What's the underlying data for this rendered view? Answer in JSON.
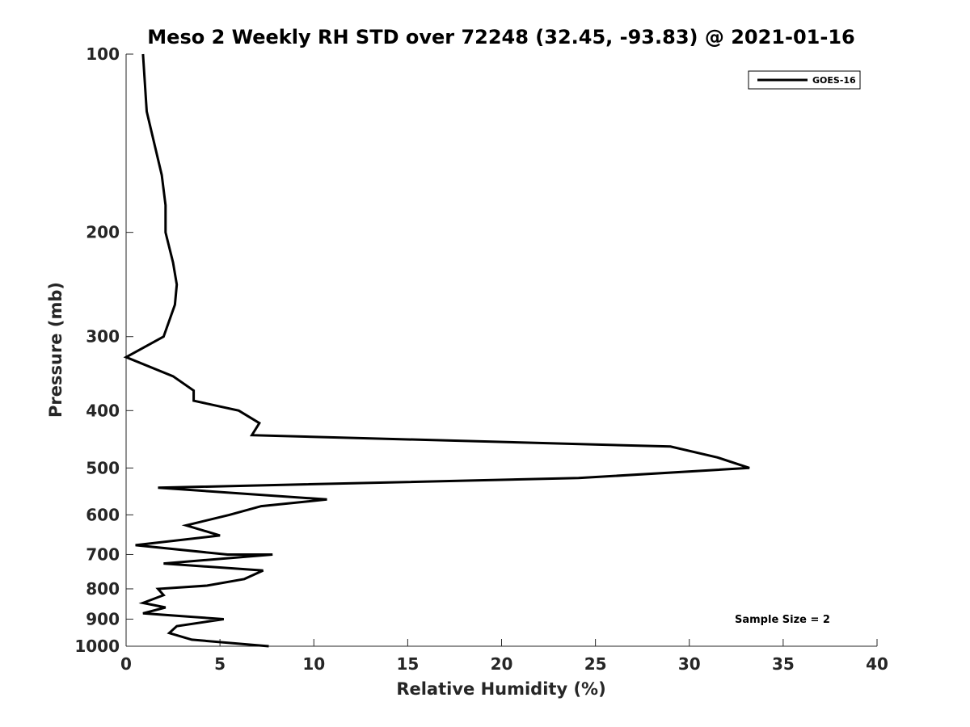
{
  "chart_data": {
    "type": "line",
    "title": "Meso 2 Weekly RH STD over 72248 (32.45, -93.83) @ 2021-01-16",
    "xlabel": "Relative Humidity (%)",
    "ylabel": "Pressure (mb)",
    "xlim": [
      0,
      40
    ],
    "ylim": [
      100,
      1000
    ],
    "y_scale": "log",
    "y_reversed": true,
    "xticks": [
      0,
      5,
      10,
      15,
      20,
      25,
      30,
      35,
      40
    ],
    "yticks": [
      100,
      200,
      300,
      400,
      500,
      600,
      700,
      800,
      900,
      1000
    ],
    "grid": false,
    "legend_position": "top-right",
    "annotation": "Sample Size = 2",
    "line_color": "#000000",
    "series": [
      {
        "name": "GOES-16",
        "points": [
          [
            0.9,
            100
          ],
          [
            1.1,
            125
          ],
          [
            1.9,
            160
          ],
          [
            2.1,
            180
          ],
          [
            2.1,
            200
          ],
          [
            2.5,
            225
          ],
          [
            2.7,
            245
          ],
          [
            2.6,
            265
          ],
          [
            2.0,
            300
          ],
          [
            0.0,
            325
          ],
          [
            2.5,
            350
          ],
          [
            3.6,
            370
          ],
          [
            3.6,
            385
          ],
          [
            6.0,
            400
          ],
          [
            7.1,
            420
          ],
          [
            6.7,
            440
          ],
          [
            29.0,
            460
          ],
          [
            31.5,
            480
          ],
          [
            33.2,
            500
          ],
          [
            24.1,
            520
          ],
          [
            1.7,
            540
          ],
          [
            10.7,
            565
          ],
          [
            7.2,
            580
          ],
          [
            5.5,
            600
          ],
          [
            3.2,
            625
          ],
          [
            5.0,
            650
          ],
          [
            0.5,
            675
          ],
          [
            5.4,
            700
          ],
          [
            7.8,
            700
          ],
          [
            2.0,
            725
          ],
          [
            7.3,
            745
          ],
          [
            6.3,
            770
          ],
          [
            4.3,
            790
          ],
          [
            1.7,
            800
          ],
          [
            2.0,
            820
          ],
          [
            0.9,
            845
          ],
          [
            2.1,
            860
          ],
          [
            0.9,
            880
          ],
          [
            5.2,
            900
          ],
          [
            2.7,
            925
          ],
          [
            2.3,
            950
          ],
          [
            3.5,
            975
          ],
          [
            7.6,
            1000
          ]
        ]
      }
    ]
  }
}
